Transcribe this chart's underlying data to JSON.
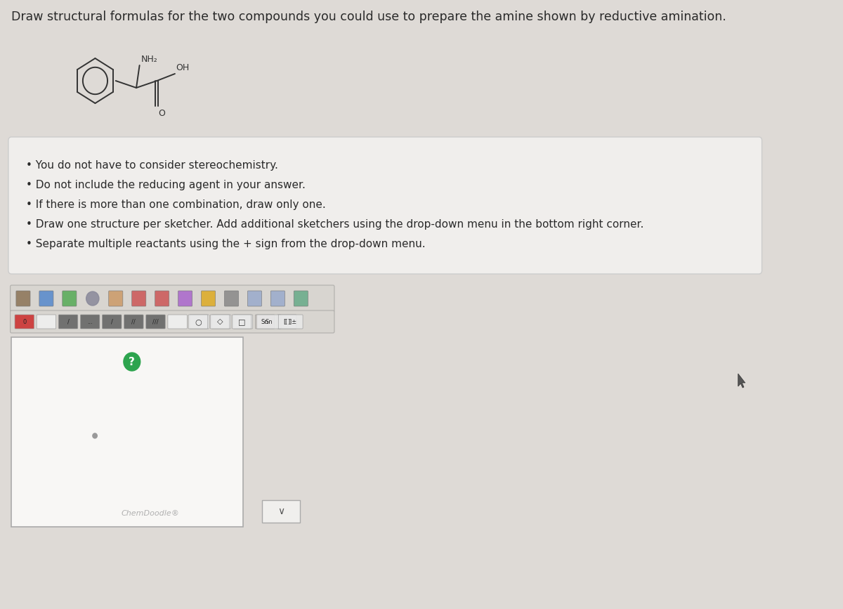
{
  "title": "Draw structural formulas for the two compounds you could use to prepare the amine shown by reductive amination.",
  "title_fontsize": 12.5,
  "bg_color": "#dedad6",
  "instructions_bg": "#f0eeec",
  "instructions_border": "#cccccc",
  "bullet_points": [
    "You do not have to consider stereochemistry.",
    "Do not include the reducing agent in your answer.",
    "If there is more than one combination, draw only one.",
    "Draw one structure per sketcher. Add additional sketchers using the drop-down menu in the bottom right corner.",
    "Separate multiple reactants using the + sign from the drop-down menu."
  ],
  "chemdoodle_label": "ChemDoodle®",
  "question_mark_color": "#2da44e",
  "sketcher_border_color": "#aaaaaa",
  "sketcher_bg": "#f8f7f5",
  "dropdown_border_color": "#aaaaaa",
  "dropdown_bg": "#f0efed",
  "bullet_fontsize": 11,
  "text_color": "#2a2a2a",
  "light_gray": "#cccccc",
  "mol_color": "#333333",
  "toolbar_bg": "#d8d5d0",
  "toolbar_border": "#b0aeab"
}
